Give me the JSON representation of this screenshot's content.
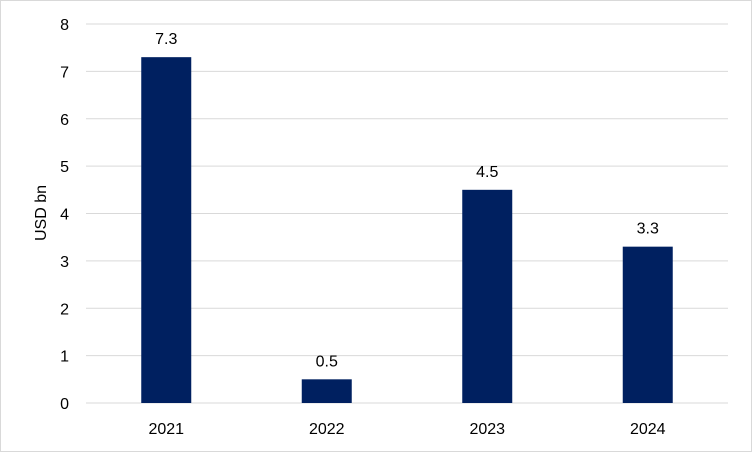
{
  "chart_data": {
    "type": "bar",
    "title": "",
    "xlabel": "",
    "ylabel": "USD bn",
    "categories": [
      "2021",
      "2022",
      "2023",
      "2024"
    ],
    "values": [
      7.3,
      0.5,
      4.5,
      3.3
    ],
    "data_labels": [
      "7.3",
      "0.5",
      "4.5",
      "3.3"
    ],
    "ylim": [
      0,
      8
    ],
    "yticks": [
      "0",
      "1",
      "2",
      "3",
      "4",
      "5",
      "6",
      "7",
      "8"
    ],
    "grid": true,
    "legend": "none",
    "bar_color": "#002060",
    "grid_color": "#d9d9d9"
  }
}
